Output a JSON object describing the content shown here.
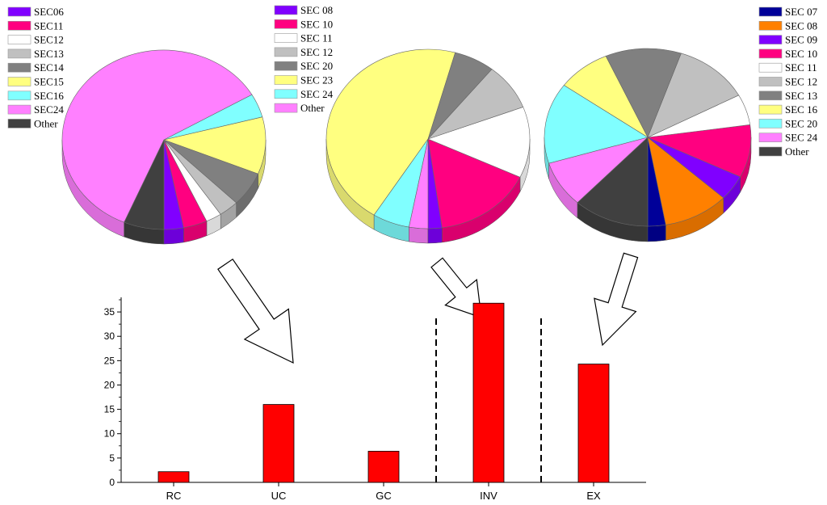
{
  "chart_data": [
    {
      "type": "pie",
      "legend": {
        "placement": "top-left"
      },
      "series": [
        {
          "name": "SEC06",
          "value": 3.1,
          "color": "#8000ff"
        },
        {
          "name": "SEC11",
          "value": 3.8,
          "color": "#ff0080"
        },
        {
          "name": "SEC12",
          "value": 2.5,
          "color": "#ffffff"
        },
        {
          "name": "SEC13",
          "value": 3.2,
          "color": "#c0c0c0"
        },
        {
          "name": "SEC14",
          "value": 6.2,
          "color": "#808080"
        },
        {
          "name": "SEC15",
          "value": 10.3,
          "color": "#ffff80"
        },
        {
          "name": "SEC16",
          "value": 4.3,
          "color": "#80ffff"
        },
        {
          "name": "SEC24",
          "value": 60.2,
          "color": "#ff80ff"
        },
        {
          "name": "Other",
          "value": 6.4,
          "color": "#404040"
        }
      ]
    },
    {
      "type": "pie",
      "legend": {
        "placement": "top-left"
      },
      "series": [
        {
          "name": "SEC 08",
          "value": 2.2,
          "color": "#8000ff"
        },
        {
          "name": "SEC 10",
          "value": 15.8,
          "color": "#ff0080"
        },
        {
          "name": "SEC 11",
          "value": 12.8,
          "color": "#ffffff"
        },
        {
          "name": "SEC 12",
          "value": 8.4,
          "color": "#c0c0c0"
        },
        {
          "name": "SEC 20",
          "value": 6.5,
          "color": "#808080"
        },
        {
          "name": "SEC 23",
          "value": 45.4,
          "color": "#ffff80"
        },
        {
          "name": "SEC 24",
          "value": 5.9,
          "color": "#80ffff"
        },
        {
          "name": "Other",
          "value": 3.0,
          "color": "#ff80ff"
        }
      ]
    },
    {
      "type": "pie",
      "legend": {
        "placement": "top-right"
      },
      "series": [
        {
          "name": "SEC 07",
          "value": 2.8,
          "color": "#000099"
        },
        {
          "name": "SEC 08",
          "value": 10.3,
          "color": "#ff8000"
        },
        {
          "name": "SEC 09",
          "value": 4.6,
          "color": "#8000ff"
        },
        {
          "name": "SEC 10",
          "value": 9.6,
          "color": "#ff0080"
        },
        {
          "name": "SEC 11",
          "value": 5.6,
          "color": "#ffffff"
        },
        {
          "name": "SEC 12",
          "value": 11.9,
          "color": "#c0c0c0"
        },
        {
          "name": "SEC 13",
          "value": 11.9,
          "color": "#808080"
        },
        {
          "name": "SEC 16",
          "value": 8.4,
          "color": "#ffff80"
        },
        {
          "name": "SEC 20",
          "value": 14.7,
          "color": "#80ffff"
        },
        {
          "name": "SEC 24",
          "value": 8.4,
          "color": "#ff80ff"
        },
        {
          "name": "Other",
          "value": 11.9,
          "color": "#404040"
        }
      ]
    },
    {
      "type": "bar",
      "categories": [
        "RC",
        "UC",
        "GC",
        "INV",
        "EX"
      ],
      "values": [
        2.2,
        16.0,
        6.4,
        36.8,
        24.3
      ],
      "ylim": [
        0,
        38
      ],
      "yticks": [
        0,
        5,
        10,
        15,
        20,
        25,
        30,
        35
      ],
      "bar_color": "#ff0000",
      "grid": false,
      "separators_after": [
        "GC",
        "INV"
      ]
    }
  ]
}
